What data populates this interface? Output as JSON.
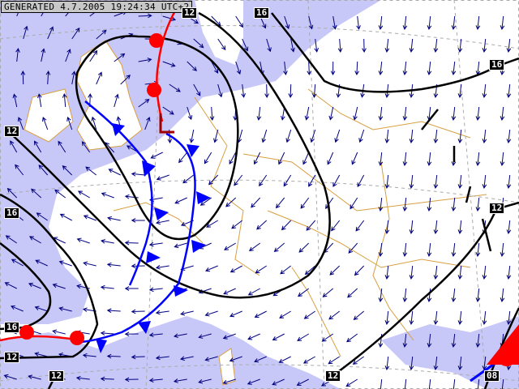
{
  "header": {
    "generated": "GENERATED 4.7.2005 19:24:34 UTC+2"
  },
  "isobar_labels": [
    "12",
    "16",
    "16",
    "12",
    "16",
    "12",
    "16",
    "12",
    "12",
    "12",
    "08"
  ],
  "colors": {
    "sea": "#c8c8f8",
    "land": "#ffffff",
    "borders": "#d8a040",
    "isobars": "#000000",
    "cold_front": "#0000ff",
    "warm_front": "#ff0000",
    "wind_arrows": "#000080",
    "low_marker": "#a00000"
  }
}
